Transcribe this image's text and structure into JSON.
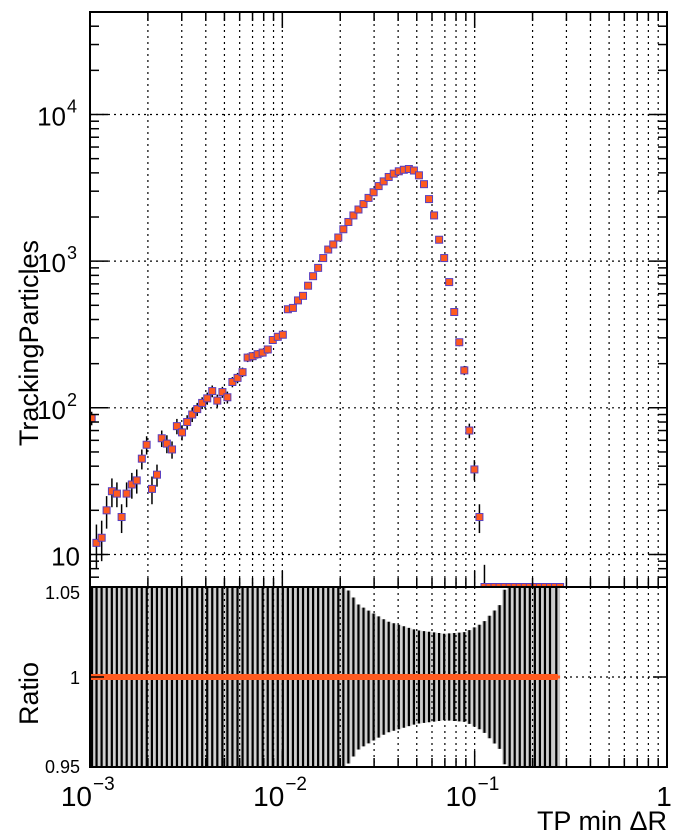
{
  "chart_data": [
    {
      "type": "scatter",
      "xscale": "log",
      "yscale": "log",
      "xlim": [
        0.001,
        1
      ],
      "ylim": [
        6,
        50000
      ],
      "ylabel": "TrackingParticles",
      "grid": true,
      "y_ticks": [
        {
          "value": 10,
          "label": "10"
        },
        {
          "value": 100,
          "label": "10",
          "exp": "2"
        },
        {
          "value": 1000,
          "label": "10",
          "exp": "3"
        },
        {
          "value": 10000,
          "label": "10",
          "exp": "4"
        }
      ],
      "colors": {
        "marker_series_1": "#5a3fbf",
        "marker_series_2": "#ff5a1f",
        "error_bar": "#000000"
      },
      "series": [
        {
          "x": [
            0.00102,
            0.00108,
            0.00115,
            0.00122,
            0.0013,
            0.00138,
            0.00146,
            0.00155,
            0.00165,
            0.00175,
            0.00186,
            0.00197,
            0.0021,
            0.00223,
            0.00236,
            0.00251,
            0.00267,
            0.00283,
            0.00301,
            0.0032,
            0.0034,
            0.00361,
            0.00383,
            0.00407,
            0.00432,
            0.00459,
            0.00488,
            0.00518,
            0.0055,
            0.00585,
            0.00621,
            0.0066,
            0.00701,
            0.00744,
            0.0079,
            0.0084,
            0.00892,
            0.00947,
            0.01006,
            0.01069,
            0.01135,
            0.01206,
            0.01281,
            0.01361,
            0.01445,
            0.01535,
            0.01631,
            0.01732,
            0.0184,
            0.01954,
            0.02076,
            0.02205,
            0.02342,
            0.02488,
            0.02643,
            0.02807,
            0.02982,
            0.03167,
            0.03364,
            0.03573,
            0.03796,
            0.04032,
            0.04283,
            0.04549,
            0.04832,
            0.05132,
            0.05452,
            0.05791,
            0.06151,
            0.06533,
            0.0694,
            0.07371,
            0.0783,
            0.08317,
            0.08834,
            0.09383,
            0.09967,
            0.10587,
            0.11245,
            0.11945,
            0.12688,
            0.13477,
            0.14315,
            0.15206,
            0.16151,
            0.17156,
            0.18223,
            0.19357,
            0.20561,
            0.2184,
            0.23198,
            0.24641,
            0.26174,
            0.27802
          ],
          "y": [
            85,
            12,
            13,
            20,
            27,
            26,
            18,
            26,
            30,
            32,
            45,
            56,
            28,
            35,
            62,
            57,
            52,
            75,
            68,
            80,
            90,
            98,
            108,
            116,
            130,
            112,
            128,
            118,
            150,
            160,
            175,
            220,
            225,
            232,
            238,
            250,
            290,
            305,
            315,
            470,
            480,
            540,
            580,
            680,
            790,
            900,
            1050,
            1200,
            1300,
            1450,
            1650,
            1850,
            2050,
            2250,
            2450,
            2700,
            2950,
            3250,
            3500,
            3750,
            3950,
            4100,
            4200,
            4250,
            4150,
            3850,
            3350,
            2650,
            2050,
            1400,
            1050,
            720,
            450,
            280,
            180,
            70,
            38,
            18,
            6,
            6,
            6,
            6,
            6,
            6,
            6,
            6,
            6,
            6,
            6,
            6,
            6,
            6,
            6,
            6
          ],
          "y_err": [
            9,
            4,
            4,
            5,
            6,
            5,
            4,
            5,
            6,
            6,
            7,
            8,
            6,
            6,
            8,
            8,
            7,
            9,
            8,
            9,
            10,
            10,
            10,
            11,
            12,
            11,
            11,
            11,
            12,
            13,
            13,
            15,
            15,
            15,
            15,
            16,
            17,
            18,
            18,
            22,
            22,
            23,
            24,
            26,
            28,
            30,
            32,
            35,
            36,
            38,
            41,
            43,
            45,
            47,
            50,
            52,
            54,
            57,
            59,
            61,
            63,
            64,
            65,
            65,
            64,
            62,
            58,
            51,
            45,
            37,
            32,
            27,
            21,
            17,
            13,
            8,
            6,
            4,
            2.5,
            0,
            0,
            0,
            0,
            0,
            0,
            0,
            0,
            0,
            0,
            0,
            0,
            0,
            0,
            0
          ]
        }
      ]
    },
    {
      "type": "scatter",
      "xscale": "log",
      "xlim": [
        0.001,
        1
      ],
      "ylim": [
        0.95,
        1.05
      ],
      "xlabel": "TP min ΔR",
      "ylabel": "Ratio",
      "grid": true,
      "y_ticks": [
        {
          "value": 0.95,
          "label": "0.95"
        },
        {
          "value": 1.0,
          "label": "1"
        },
        {
          "value": 1.05,
          "label": "1.05"
        }
      ],
      "x_ticks": [
        {
          "value": 0.001,
          "label": "10",
          "exp": "−3"
        },
        {
          "value": 0.01,
          "label": "10",
          "exp": "−2"
        },
        {
          "value": 0.1,
          "label": "10",
          "exp": "−1"
        },
        {
          "value": 1,
          "label": "1",
          "exp": ""
        }
      ],
      "colors": {
        "band_fill": "#cccccc",
        "band_hatch": "#000000",
        "marker": "#ff5a1f"
      },
      "ratio_value": 1.0,
      "band_halfwidth_note": "uncertainty band spans full range except near peak",
      "band_min_halfwidth": [
        {
          "x": 0.001,
          "h": 0.06
        },
        {
          "x": 0.0183,
          "h": 0.06
        },
        {
          "x": 0.025,
          "h": 0.04
        },
        {
          "x": 0.035,
          "h": 0.031
        },
        {
          "x": 0.05,
          "h": 0.026
        },
        {
          "x": 0.07,
          "h": 0.024
        },
        {
          "x": 0.09,
          "h": 0.025
        },
        {
          "x": 0.11,
          "h": 0.03
        },
        {
          "x": 0.135,
          "h": 0.04
        },
        {
          "x": 0.155,
          "h": 0.06
        },
        {
          "x": 0.28,
          "h": 0.06
        }
      ],
      "band_xmax": 0.278
    }
  ]
}
